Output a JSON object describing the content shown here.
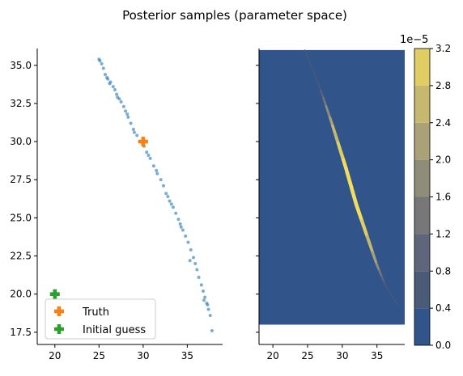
{
  "chart_data": {
    "title": "Posterior samples (parameter space)",
    "y_ticks": [
      17.5,
      20.0,
      22.5,
      25.0,
      27.5,
      30.0,
      32.5,
      35.0
    ],
    "y_tick_labels": [
      "17.5",
      "20.0",
      "22.5",
      "25.0",
      "27.5",
      "30.0",
      "32.5",
      "35.0"
    ],
    "ylim": [
      16.7,
      36.1
    ],
    "panels": [
      {
        "type": "scatter",
        "xlim": [
          18,
          39
        ],
        "x_ticks": [
          20,
          25,
          30,
          35
        ],
        "x_tick_labels": [
          "20",
          "25",
          "30",
          "35"
        ],
        "series": [
          {
            "name": "posterior samples",
            "color": "#1f77b4",
            "points": [
              [
                25.0,
                35.4
              ],
              [
                25.1,
                35.3
              ],
              [
                25.3,
                35.1
              ],
              [
                25.5,
                34.8
              ],
              [
                25.7,
                34.4
              ],
              [
                25.9,
                34.2
              ],
              [
                26.0,
                34.1
              ],
              [
                26.3,
                33.9
              ],
              [
                26.6,
                33.6
              ],
              [
                26.8,
                33.4
              ],
              [
                27.0,
                33.1
              ],
              [
                27.3,
                32.8
              ],
              [
                27.5,
                32.6
              ],
              [
                27.8,
                32.3
              ],
              [
                28.0,
                32.0
              ],
              [
                28.3,
                31.6
              ],
              [
                28.6,
                31.2
              ],
              [
                28.9,
                30.8
              ],
              [
                29.3,
                30.4
              ],
              [
                29.6,
                30.0
              ],
              [
                30.1,
                29.7
              ],
              [
                30.4,
                29.3
              ],
              [
                30.8,
                28.9
              ],
              [
                31.2,
                28.4
              ],
              [
                31.6,
                27.9
              ],
              [
                32.0,
                27.5
              ],
              [
                32.3,
                27.1
              ],
              [
                32.6,
                26.6
              ],
              [
                33.0,
                26.1
              ],
              [
                33.4,
                25.7
              ],
              [
                33.7,
                25.3
              ],
              [
                34.0,
                24.9
              ],
              [
                34.2,
                24.6
              ],
              [
                34.5,
                24.2
              ],
              [
                34.8,
                23.8
              ],
              [
                35.1,
                23.4
              ],
              [
                35.4,
                22.9
              ],
              [
                35.7,
                22.4
              ],
              [
                35.9,
                22.0
              ],
              [
                36.1,
                21.6
              ],
              [
                36.3,
                21.1
              ],
              [
                36.6,
                20.6
              ],
              [
                36.8,
                20.2
              ],
              [
                37.0,
                19.8
              ],
              [
                37.2,
                19.4
              ],
              [
                37.4,
                19.0
              ],
              [
                37.6,
                18.6
              ],
              [
                37.8,
                17.6
              ],
              [
                36.9,
                19.6
              ],
              [
                34.3,
                24.4
              ],
              [
                31.5,
                28.1
              ],
              [
                29.0,
                30.6
              ],
              [
                27.1,
                32.9
              ],
              [
                26.2,
                33.8
              ],
              [
                33.2,
                25.9
              ],
              [
                35.3,
                22.2
              ],
              [
                37.3,
                19.3
              ],
              [
                32.8,
                26.4
              ],
              [
                30.6,
                29.1
              ],
              [
                28.2,
                31.8
              ]
            ]
          }
        ],
        "markers": [
          {
            "name": "Truth",
            "x": 30,
            "y": 30,
            "color": "#ff7f0e",
            "marker": "plus"
          },
          {
            "name": "Initial guess",
            "x": 20,
            "y": 20,
            "color": "#2ca02c",
            "marker": "plus"
          }
        ],
        "legend": {
          "position": "lower-left",
          "entries": [
            "Truth",
            "Initial guess"
          ]
        }
      },
      {
        "type": "heatmap",
        "xlim": [
          18,
          39
        ],
        "x_ticks": [
          20,
          25,
          30,
          35
        ],
        "x_tick_labels": [
          "20",
          "25",
          "30",
          "35"
        ],
        "data_extent": {
          "x": [
            18,
            39
          ],
          "y": [
            18,
            36
          ]
        },
        "ridge": {
          "x": [
            24.6,
            26.5,
            28.5,
            30.5,
            32.0,
            33.5,
            35.0,
            36.2,
            37.1,
            38.0
          ],
          "y": [
            36.0,
            33.9,
            31.2,
            28.3,
            25.9,
            23.9,
            21.9,
            20.6,
            19.9,
            19.3
          ],
          "peak_x": [
            29.2,
            33.8
          ]
        },
        "colorbar": {
          "levels": [
            0.0,
            0.4,
            0.8,
            1.2,
            1.6,
            2.0,
            2.4,
            2.8,
            3.2
          ],
          "tick_labels": [
            "0.0",
            "0.4",
            "0.8",
            "1.2",
            "1.6",
            "2.0",
            "2.4",
            "2.8",
            "3.2"
          ],
          "scale_label": "1e−5",
          "colors": [
            "#31558a",
            "#4a5b78",
            "#5f667c",
            "#77777a",
            "#908c7a",
            "#aaa178",
            "#c6b86e",
            "#e0cd63",
            "#f2dd5e"
          ]
        }
      }
    ]
  }
}
